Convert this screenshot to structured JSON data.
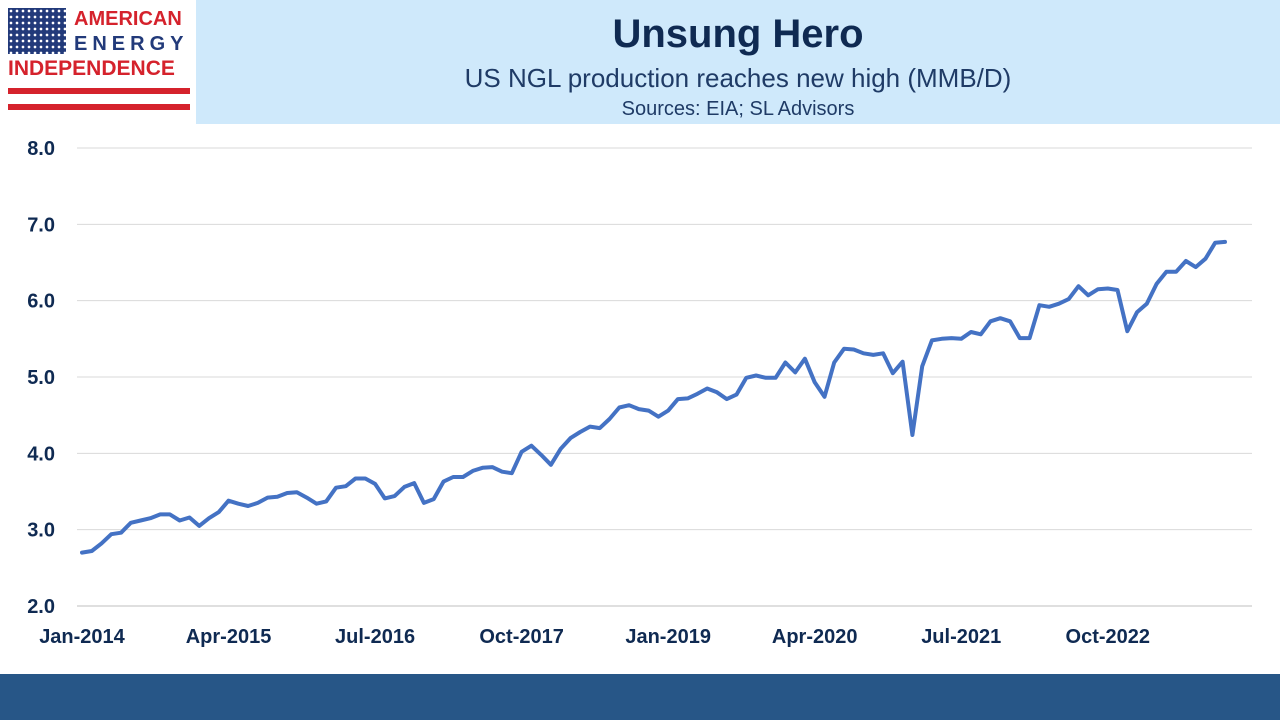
{
  "logo": {
    "line1": "AMERICAN",
    "line2": "ENERGY",
    "line3": "INDEPENDENCE"
  },
  "header": {
    "title": "Unsung Hero",
    "subtitle": "US NGL production reaches new high (MMB/D)",
    "source": "Sources: EIA; SL Advisors"
  },
  "colors": {
    "header_bg": "#cfe9fb",
    "line": "#4472c4",
    "footer": "#275687",
    "text": "#0f2a52"
  },
  "chart_data": {
    "type": "line",
    "title": "Unsung Hero",
    "subtitle": "US NGL production reaches new high (MMB/D)",
    "ylim": [
      2.0,
      8.0
    ],
    "y_ticks": [
      "2.0",
      "3.0",
      "4.0",
      "5.0",
      "6.0",
      "7.0",
      "8.0"
    ],
    "x_tick_labels": [
      "Jan-2014",
      "Apr-2015",
      "Jul-2016",
      "Oct-2017",
      "Jan-2019",
      "Apr-2020",
      "Jul-2021",
      "Oct-2022"
    ],
    "x_start": "Jan-2014",
    "x_end": "Sep-2023",
    "frequency": "monthly",
    "grid": true,
    "legend": "none",
    "series": [
      {
        "values": [
          2.7,
          2.72,
          2.82,
          2.94,
          2.96,
          3.09,
          3.12,
          3.15,
          3.2,
          3.2,
          3.12,
          3.16,
          3.05,
          3.15,
          3.23,
          3.38,
          3.34,
          3.31,
          3.35,
          3.42,
          3.43,
          3.48,
          3.49,
          3.42,
          3.34,
          3.37,
          3.55,
          3.57,
          3.67,
          3.67,
          3.6,
          3.41,
          3.44,
          3.56,
          3.61,
          3.35,
          3.4,
          3.63,
          3.69,
          3.69,
          3.77,
          3.81,
          3.82,
          3.76,
          3.74,
          4.02,
          4.1,
          3.98,
          3.85,
          4.06,
          4.2,
          4.28,
          4.35,
          4.33,
          4.45,
          4.6,
          4.63,
          4.58,
          4.56,
          4.48,
          4.56,
          4.71,
          4.72,
          4.78,
          4.85,
          4.8,
          4.71,
          4.77,
          4.99,
          5.02,
          4.99,
          4.99,
          5.19,
          5.06,
          5.24,
          4.93,
          4.74,
          5.19,
          5.37,
          5.36,
          5.31,
          5.29,
          5.31,
          5.05,
          5.2,
          4.24,
          5.14,
          5.48,
          5.5,
          5.51,
          5.5,
          5.59,
          5.56,
          5.73,
          5.77,
          5.73,
          5.51,
          5.51,
          5.94,
          5.92,
          5.96,
          6.02,
          6.19,
          6.07,
          6.15,
          6.16,
          6.14,
          5.6,
          5.85,
          5.96,
          6.22,
          6.38,
          6.38,
          6.52,
          6.44,
          6.55,
          6.76,
          6.77
        ]
      }
    ]
  }
}
